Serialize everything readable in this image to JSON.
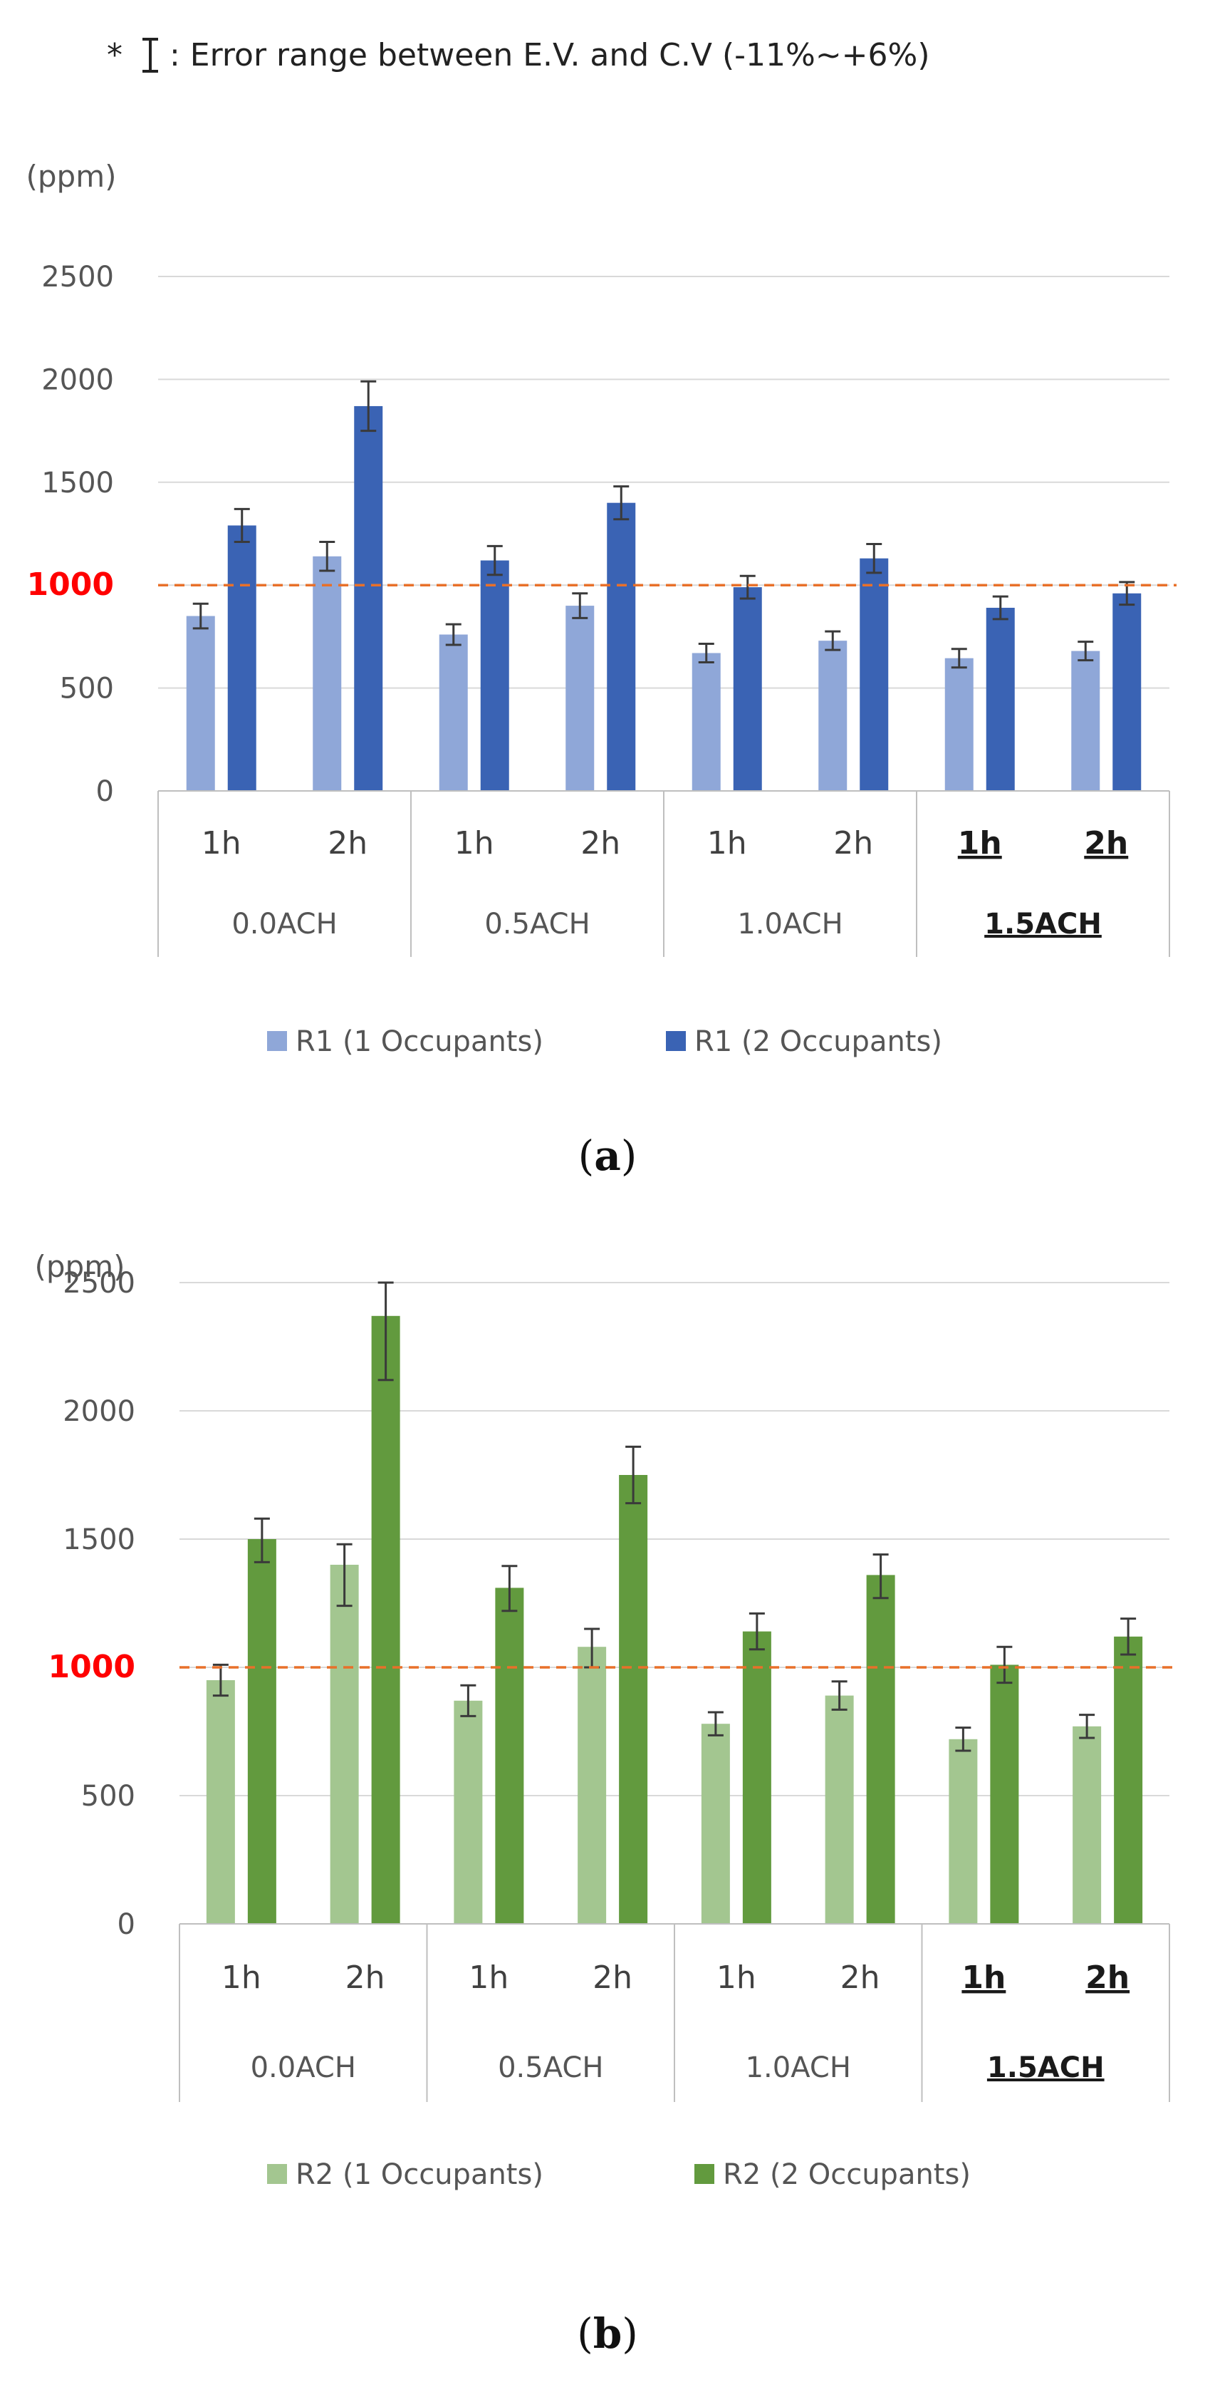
{
  "note": {
    "star": "*",
    "text": ": Error range between E.V. and C.V (-11%~+6%)"
  },
  "chart_data": [
    {
      "type": "bar",
      "caption_before": "(",
      "caption_letter": "a",
      "caption_after": ")",
      "unit_label": "(ppm)",
      "ylim": [
        0,
        2500
      ],
      "yticks": [
        "0",
        "500",
        "1000",
        "1500",
        "2000",
        "2500"
      ],
      "reference": {
        "value": 1000,
        "label": "1000",
        "color": "#E8702A",
        "label_color": "#FF0000"
      },
      "groups": [
        {
          "label": "0.0ACH",
          "emphasis": false
        },
        {
          "label": "0.5ACH",
          "emphasis": false
        },
        {
          "label": "1.0ACH",
          "emphasis": false
        },
        {
          "label": "1.5ACH",
          "emphasis": true
        }
      ],
      "categories": [
        "1h",
        "2h",
        "1h",
        "2h",
        "1h",
        "2h",
        "1h",
        "2h"
      ],
      "series": [
        {
          "name": "R1  (1 Occupants)",
          "color": "#8FA7D8",
          "values": [
            850,
            1140,
            760,
            900,
            670,
            730,
            645,
            680
          ],
          "err_low": [
            60,
            70,
            50,
            60,
            45,
            45,
            45,
            45
          ],
          "err_high": [
            60,
            70,
            50,
            60,
            45,
            45,
            45,
            45
          ]
        },
        {
          "name": "R1  (2 Occupants)",
          "color": "#3A63B4",
          "values": [
            1290,
            1870,
            1120,
            1400,
            990,
            1130,
            890,
            960
          ],
          "err_low": [
            80,
            120,
            70,
            80,
            55,
            70,
            55,
            55
          ],
          "err_high": [
            80,
            120,
            70,
            80,
            55,
            70,
            55,
            55
          ]
        }
      ]
    },
    {
      "type": "bar",
      "caption_before": "(",
      "caption_letter": "b",
      "caption_after": ")",
      "unit_label": "(ppm)",
      "ylim": [
        0,
        2500
      ],
      "yticks": [
        "0",
        "500",
        "1000",
        "1500",
        "2000",
        "2500"
      ],
      "reference": {
        "value": 1000,
        "label": "1000",
        "color": "#E8702A",
        "label_color": "#FF0000"
      },
      "groups": [
        {
          "label": "0.0ACH",
          "emphasis": false
        },
        {
          "label": "0.5ACH",
          "emphasis": false
        },
        {
          "label": "1.0ACH",
          "emphasis": false
        },
        {
          "label": "1.5ACH",
          "emphasis": true
        }
      ],
      "categories": [
        "1h",
        "2h",
        "1h",
        "2h",
        "1h",
        "2h",
        "1h",
        "2h"
      ],
      "series": [
        {
          "name": "R2  (1 Occupants)",
          "color": "#A3C690",
          "values": [
            950,
            1400,
            870,
            1080,
            780,
            890,
            720,
            770
          ],
          "err_low": [
            60,
            160,
            60,
            80,
            45,
            55,
            45,
            45
          ],
          "err_high": [
            60,
            80,
            60,
            70,
            45,
            55,
            45,
            45
          ]
        },
        {
          "name": "R2  (2 Occupants)",
          "color": "#629A3E",
          "values": [
            1500,
            2370,
            1310,
            1750,
            1140,
            1360,
            1010,
            1120
          ],
          "err_low": [
            90,
            250,
            90,
            110,
            70,
            90,
            70,
            70
          ],
          "err_high": [
            80,
            130,
            85,
            110,
            70,
            80,
            70,
            70
          ]
        }
      ]
    }
  ]
}
